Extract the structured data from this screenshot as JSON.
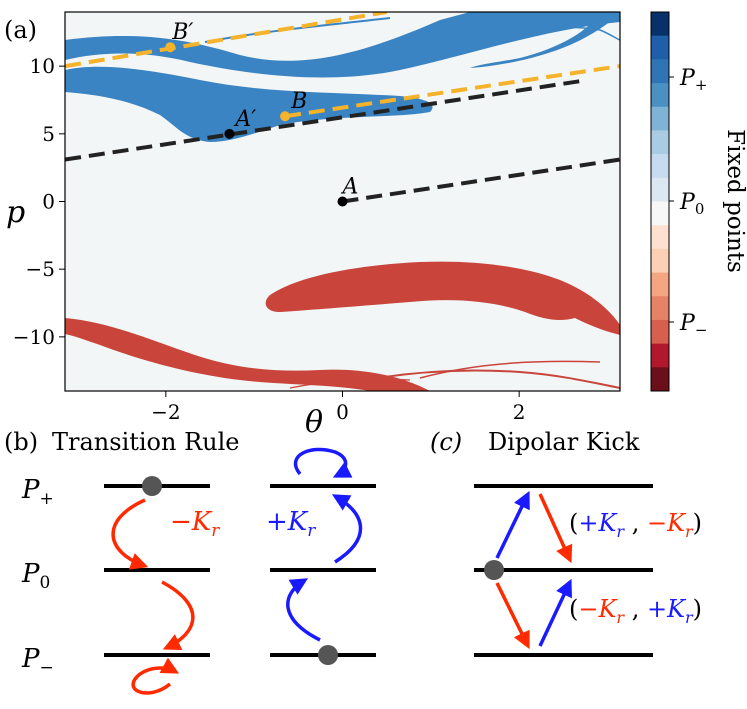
{
  "figure": {
    "panel_a": {
      "label": "(a)",
      "xlabel": "θ",
      "ylabel": "p",
      "xticks": [
        "−2",
        "0",
        "2"
      ],
      "yticks": [
        "10",
        "5",
        "0",
        "−5",
        "−10"
      ],
      "points": {
        "A": "A",
        "A_prime": "A′",
        "B": "B",
        "B_prime": "B′"
      },
      "colorbar": {
        "title": "Fixed points",
        "ticks": {
          "p_plus": "P",
          "p_plus_sub": "+",
          "p_zero": "P",
          "p_zero_sub": "0",
          "p_minus": "P",
          "p_minus_sub": "−"
        },
        "colors": [
          "#6b0f1a",
          "#b2182b",
          "#d6604d",
          "#e58268",
          "#f4a582",
          "#fbd0b5",
          "#fde0d0",
          "#f7f7f7",
          "#dbe8f2",
          "#c6dbef",
          "#a9cce3",
          "#7fb3d5",
          "#4a90c2",
          "#2f74b5",
          "#1f5ea8",
          "#08306b"
        ]
      },
      "chart_data": {
        "type": "heatmap",
        "title": "",
        "xlabel": "θ",
        "ylabel": "p",
        "xlim": [
          -3.14159,
          3.14159
        ],
        "ylim": [
          -14,
          14
        ],
        "points": [
          {
            "name": "A",
            "theta": 0.0,
            "p": 0.0
          },
          {
            "name": "A′",
            "theta": -1.28,
            "p": 5.0
          },
          {
            "name": "B",
            "theta": -0.65,
            "p": 6.3
          },
          {
            "name": "B′",
            "theta": -1.95,
            "p": 11.4
          }
        ],
        "dashed_lines": [
          {
            "color": "#222222",
            "from": [
              0.0,
              0.0
            ],
            "to": [
              3.14,
              3.1
            ]
          },
          {
            "color": "#222222",
            "from": [
              -3.14,
              3.1
            ],
            "to": [
              2.7,
              8.9
            ]
          },
          {
            "color": "#f5b22b",
            "from": [
              -0.65,
              6.3
            ],
            "to": [
              3.14,
              10.0
            ]
          },
          {
            "color": "#f5b22b",
            "from": [
              -3.14,
              10.0
            ],
            "to": [
              0.5,
              14.0
            ]
          }
        ]
      }
    },
    "panel_b": {
      "label": "(b)",
      "title": "Transition Rule",
      "levels": {
        "p_plus": "P",
        "p_plus_sub": "+",
        "p_zero": "P",
        "p_zero_sub": "0",
        "p_minus": "P",
        "p_minus_sub": "−"
      },
      "red_label": {
        "sign": "−K",
        "sub": "r"
      },
      "blue_label": {
        "sign": "+K",
        "sub": "r"
      },
      "red_color": "#ff2a00",
      "blue_color": "#1a1aff"
    },
    "panel_c": {
      "label": "(c)",
      "title": "Dipolar Kick",
      "upper_pair": {
        "open": "(",
        "first": "+K",
        "first_sub": "r",
        "sep": " , ",
        "second": "−K",
        "second_sub": "r",
        "close": ")"
      },
      "lower_pair": {
        "open": "(",
        "first": "−K",
        "first_sub": "r",
        "sep": " , ",
        "second": "+K",
        "second_sub": "r",
        "close": ")"
      }
    }
  }
}
